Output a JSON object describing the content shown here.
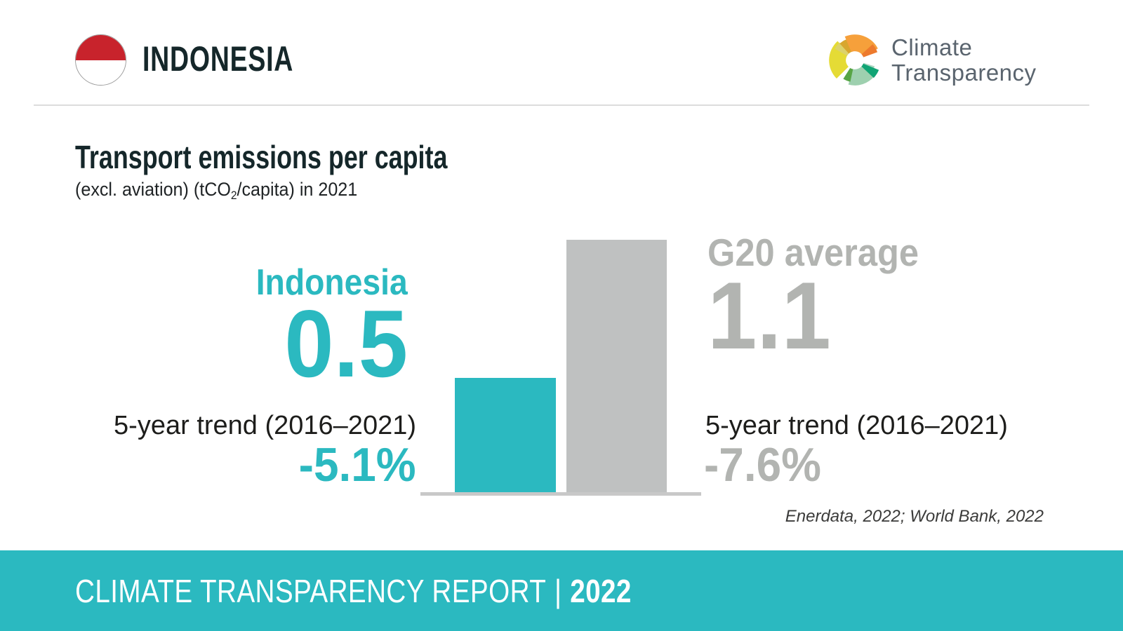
{
  "header": {
    "country": "INDONESIA",
    "logo": {
      "line1": "Climate",
      "line2": "Transparency"
    }
  },
  "title": {
    "main": "Transport emissions per capita",
    "sub_prefix": "(excl. aviation) (tCO",
    "sub_subscript": "2",
    "sub_suffix": "/capita) in 2021"
  },
  "chart_data": {
    "type": "bar",
    "title": "Transport emissions per capita",
    "subtitle": "(excl. aviation) (tCO2/capita) in 2021",
    "unit": "tCO2/capita",
    "year": "2021",
    "categories": [
      "Indonesia",
      "G20 average"
    ],
    "values": [
      0.5,
      1.1
    ],
    "value_labels": [
      "0.5",
      "1.1"
    ],
    "bar_colors": [
      "#2bb9c0",
      "#bfc1c1"
    ],
    "label_colors": [
      "#2bb9c0",
      "#b2b4b1"
    ],
    "trend_label": "5-year trend (2016–2021)",
    "trend_values": [
      "-5.1%",
      "-7.6%"
    ],
    "ylim": [
      0,
      1.2
    ],
    "grid": false,
    "legend_position": "beside-bars",
    "source": "Enerdata, 2022; World Bank, 2022"
  },
  "footer": {
    "report_title": "CLIMATE TRANSPARENCY REPORT",
    "separator": "|",
    "year": "2022"
  },
  "colors": {
    "accent_teal": "#2bb9c0",
    "bar_gray": "#bfc1c1",
    "gray_text": "#b2b4b1",
    "dark_text": "#15272a",
    "flag_red": "#c8232c",
    "footer_background": "#2bb9c0"
  }
}
